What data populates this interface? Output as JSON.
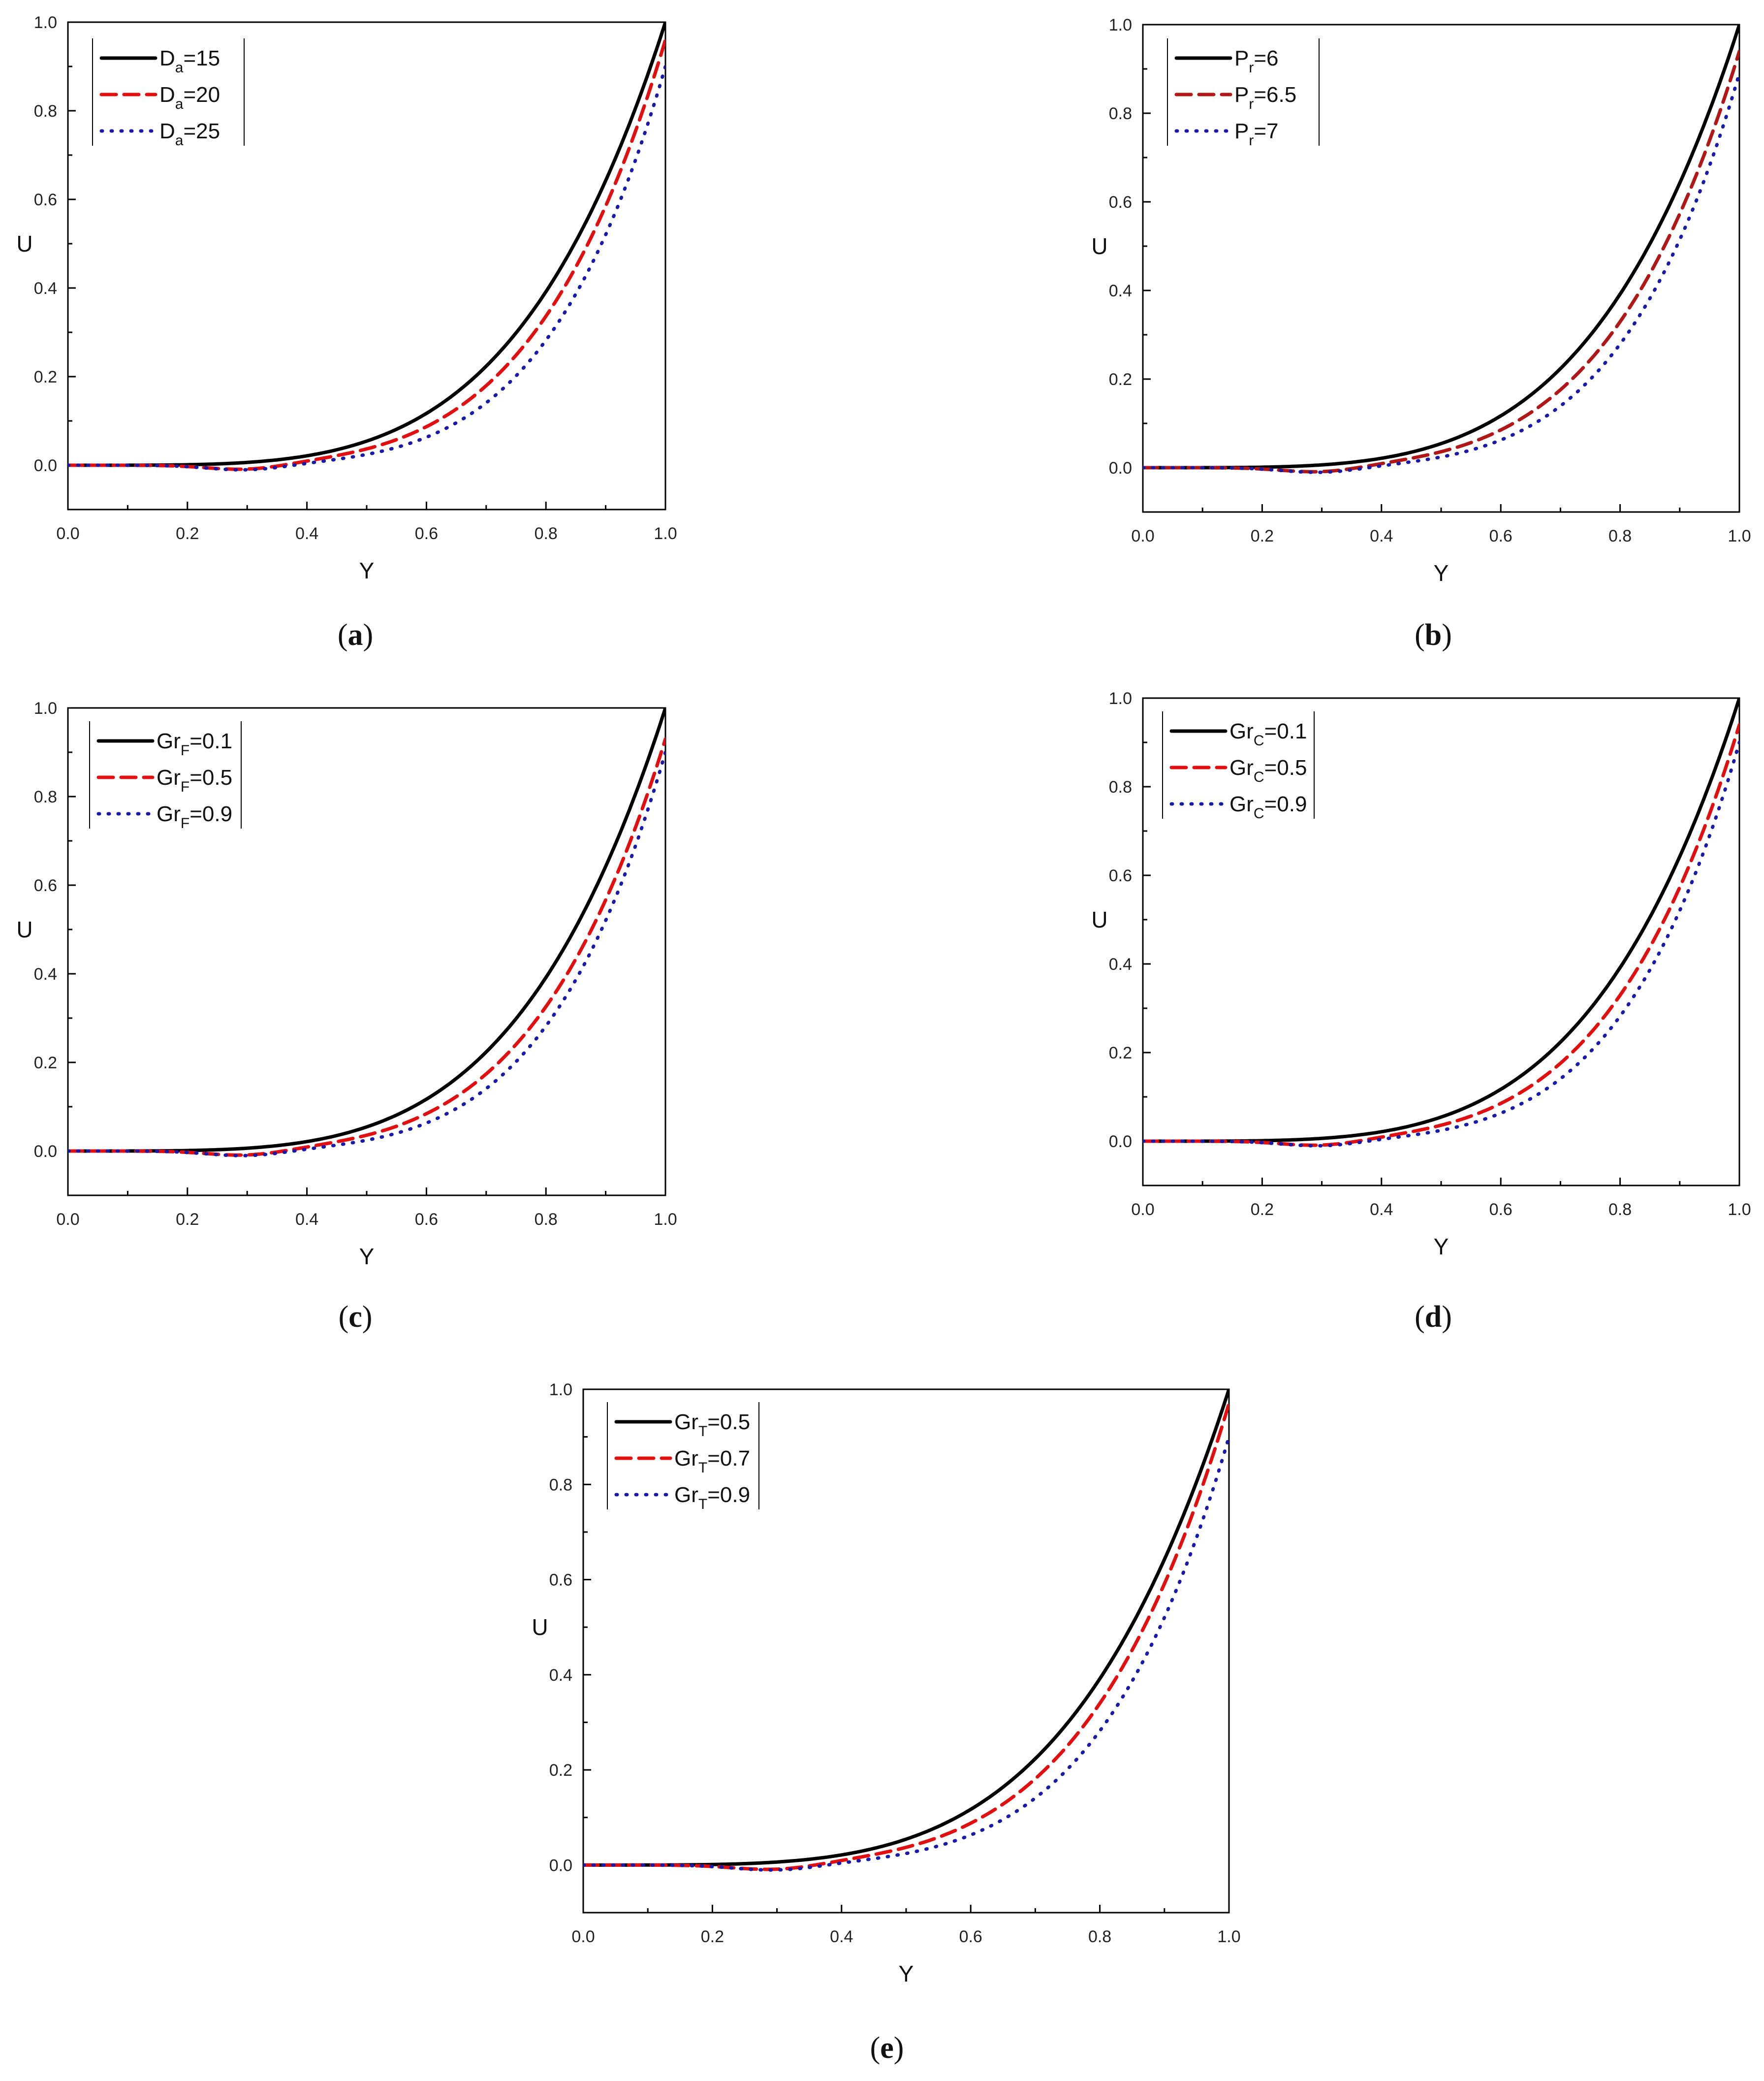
{
  "chart_data": [
    {
      "panel": "a",
      "type": "line",
      "caption": "(a)",
      "xlabel": "Y",
      "ylabel": "U",
      "xlim": [
        0.0,
        1.0
      ],
      "ylim": [
        -0.1,
        1.0
      ],
      "xticks": [
        "0.0",
        "0.2",
        "0.4",
        "0.6",
        "0.8",
        "1.0"
      ],
      "yticks": [
        "0.0",
        "0.2",
        "0.4",
        "0.6",
        "0.8",
        "1.0"
      ],
      "legend_placement": "top-left",
      "series": [
        {
          "name": "Da=15",
          "label_main": "D",
          "label_sub": "a",
          "label_rest": "=15",
          "color": "#000000",
          "style": "solid",
          "exponent": 4.2,
          "end": 1.0
        },
        {
          "name": "Da=20",
          "label_main": "D",
          "label_sub": "a",
          "label_rest": "=20",
          "color": "#e01010",
          "style": "dashed",
          "exponent": 4.7,
          "end": 0.96
        },
        {
          "name": "Da=25",
          "label_main": "D",
          "label_sub": "a",
          "label_rest": "=25",
          "color": "#1a1aa8",
          "style": "dotted",
          "exponent": 5.2,
          "end": 0.9
        }
      ]
    },
    {
      "panel": "b",
      "type": "line",
      "caption": "(b)",
      "xlabel": "Y",
      "ylabel": "U",
      "xlim": [
        0.0,
        1.0
      ],
      "ylim": [
        -0.1,
        1.0
      ],
      "xticks": [
        "0.0",
        "0.2",
        "0.4",
        "0.6",
        "0.8",
        "1.0"
      ],
      "yticks": [
        "0.0",
        "0.2",
        "0.4",
        "0.6",
        "0.8",
        "1.0"
      ],
      "legend_placement": "top-left",
      "series": [
        {
          "name": "Pr=6",
          "label_main": "P",
          "label_sub": "r",
          "label_rest": "=6",
          "color": "#000000",
          "style": "solid",
          "exponent": 4.2,
          "end": 1.0
        },
        {
          "name": "Pr=6.5",
          "label_main": "P",
          "label_sub": "r",
          "label_rest": "=6.5",
          "color": "#b01818",
          "style": "dashed",
          "exponent": 4.7,
          "end": 0.94
        },
        {
          "name": "Pr=7",
          "label_main": "P",
          "label_sub": "r",
          "label_rest": "=7",
          "color": "#1a1aa8",
          "style": "dotted",
          "exponent": 5.2,
          "end": 0.89
        }
      ]
    },
    {
      "panel": "c",
      "type": "line",
      "caption": "(c)",
      "xlabel": "Y",
      "ylabel": "U",
      "xlim": [
        0.0,
        1.0
      ],
      "ylim": [
        -0.1,
        1.0
      ],
      "xticks": [
        "0.0",
        "0.2",
        "0.4",
        "0.6",
        "0.8",
        "1.0"
      ],
      "yticks": [
        "0.0",
        "0.2",
        "0.4",
        "0.6",
        "0.8",
        "1.0"
      ],
      "legend_placement": "top-left",
      "series": [
        {
          "name": "GrF=0.1",
          "label_main": "Gr",
          "label_sub": "F",
          "label_rest": "=0.1",
          "color": "#000000",
          "style": "solid",
          "exponent": 4.2,
          "end": 1.0
        },
        {
          "name": "GrF=0.5",
          "label_main": "Gr",
          "label_sub": "F",
          "label_rest": "=0.5",
          "color": "#e01010",
          "style": "dashed",
          "exponent": 4.7,
          "end": 0.93
        },
        {
          "name": "GrF=0.9",
          "label_main": "Gr",
          "label_sub": "F",
          "label_rest": "=0.9",
          "color": "#1a1aa8",
          "style": "dotted",
          "exponent": 5.2,
          "end": 0.9
        }
      ]
    },
    {
      "panel": "d",
      "type": "line",
      "caption": "(d)",
      "xlabel": "Y",
      "ylabel": "U",
      "xlim": [
        0.0,
        1.0
      ],
      "ylim": [
        -0.1,
        1.0
      ],
      "xticks": [
        "0.0",
        "0.2",
        "0.4",
        "0.6",
        "0.8",
        "1.0"
      ],
      "yticks": [
        "0.0",
        "0.2",
        "0.4",
        "0.6",
        "0.8",
        "1.0"
      ],
      "legend_placement": "top-left",
      "series": [
        {
          "name": "GrC=0.1",
          "label_main": "Gr",
          "label_sub": "C",
          "label_rest": "=0.1",
          "color": "#000000",
          "style": "solid",
          "exponent": 4.2,
          "end": 1.0
        },
        {
          "name": "GrC=0.5",
          "label_main": "Gr",
          "label_sub": "C",
          "label_rest": "=0.5",
          "color": "#e01010",
          "style": "dashed",
          "exponent": 4.7,
          "end": 0.94
        },
        {
          "name": "GrC=0.9",
          "label_main": "Gr",
          "label_sub": "C",
          "label_rest": "=0.9",
          "color": "#1a1aa8",
          "style": "dotted",
          "exponent": 5.2,
          "end": 0.9
        }
      ]
    },
    {
      "panel": "e",
      "type": "line",
      "caption": "(e)",
      "xlabel": "Y",
      "ylabel": "U",
      "xlim": [
        0.0,
        1.0
      ],
      "ylim": [
        -0.1,
        1.0
      ],
      "xticks": [
        "0.0",
        "0.2",
        "0.4",
        "0.6",
        "0.8",
        "1.0"
      ],
      "yticks": [
        "0.0",
        "0.2",
        "0.4",
        "0.6",
        "0.8",
        "1.0"
      ],
      "legend_placement": "top-left",
      "series": [
        {
          "name": "GrT=0.5",
          "label_main": "Gr",
          "label_sub": "T",
          "label_rest": "=0.5",
          "color": "#000000",
          "style": "solid",
          "exponent": 4.2,
          "end": 1.0
        },
        {
          "name": "GrT=0.7",
          "label_main": "Gr",
          "label_sub": "T",
          "label_rest": "=0.7",
          "color": "#e01010",
          "style": "dashed",
          "exponent": 4.7,
          "end": 0.97
        },
        {
          "name": "GrT=0.9",
          "label_main": "Gr",
          "label_sub": "T",
          "label_rest": "=0.9",
          "color": "#1a1aa8",
          "style": "dotted",
          "exponent": 5.2,
          "end": 0.9
        }
      ]
    }
  ]
}
